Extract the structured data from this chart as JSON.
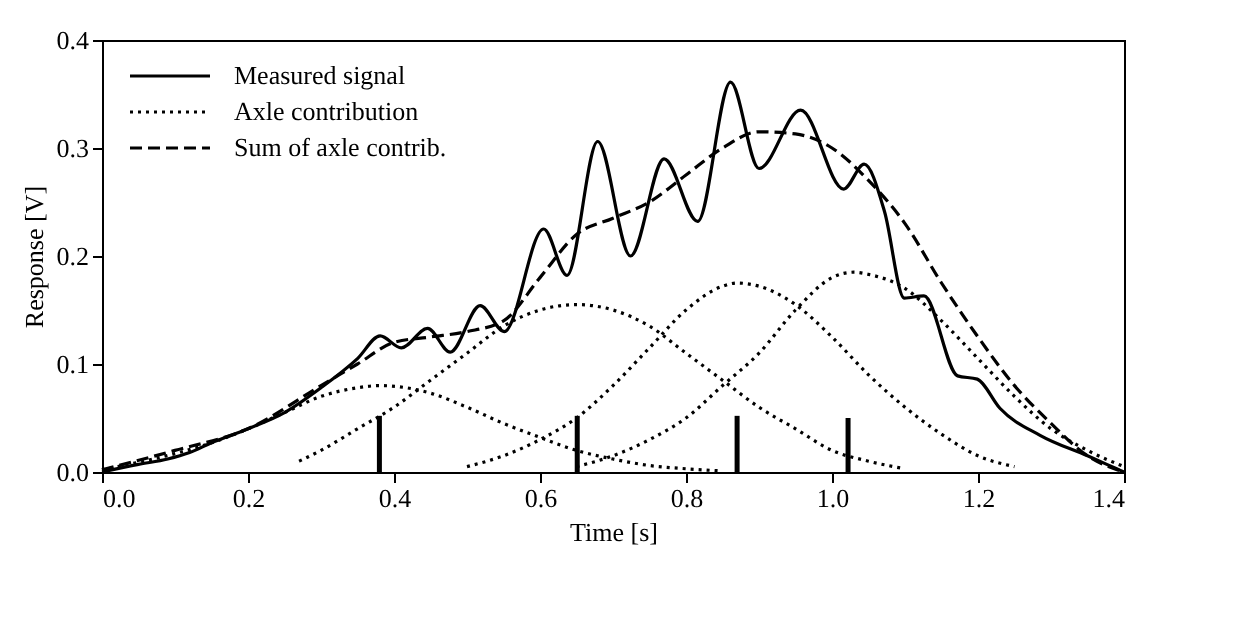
{
  "chart_data": {
    "type": "line",
    "xlabel": "Time [s]",
    "ylabel": "Response [V]",
    "xlim": [
      0,
      1.4
    ],
    "ylim": [
      0,
      0.4
    ],
    "xticks": [
      {
        "value": 0,
        "label": "0.0"
      },
      0.2,
      0.4,
      0.6,
      0.8,
      {
        "value": 1,
        "label": "1.0"
      },
      1.2,
      1.4
    ],
    "yticks": [
      {
        "value": 0,
        "label": "0.0"
      },
      0.1,
      0.2,
      0.3,
      0.4
    ],
    "grid": false,
    "legend": "top left",
    "marker": "none",
    "series": [
      {
        "name": "Measured signal",
        "type": "line",
        "line_style": "solid",
        "color": "#000000",
        "x": [
          0,
          0.05,
          0.09,
          0.12,
          0.15,
          0.2,
          0.25,
          0.3,
          0.35,
          0.381,
          0.41,
          0.446,
          0.477,
          0.518,
          0.551,
          0.605,
          0.637,
          0.679,
          0.724,
          0.77,
          0.816,
          0.861,
          0.9,
          0.957,
          1.016,
          1.044,
          1.072,
          1.099,
          1.126,
          1.172,
          1.199,
          1.23,
          1.285,
          1.35,
          1.39,
          1.4
        ],
        "values": [
          0,
          0.007,
          0.012,
          0.018,
          0.027,
          0.04,
          0.055,
          0.078,
          0.105,
          0.126,
          0.115,
          0.133,
          0.111,
          0.154,
          0.13,
          0.225,
          0.182,
          0.306,
          0.2,
          0.29,
          0.232,
          0.361,
          0.281,
          0.335,
          0.262,
          0.285,
          0.241,
          0.161,
          0.163,
          0.089,
          0.086,
          0.059,
          0.034,
          0.015,
          0.003,
          0
        ]
      },
      {
        "name": "Axle contribution",
        "type": "line",
        "line_style": "dotted",
        "color": "#000000",
        "x": [
          0,
          0.05,
          0.1,
          0.15,
          0.2,
          0.25,
          0.3,
          0.35,
          0.38,
          0.45,
          0.5,
          0.55,
          0.6,
          0.65,
          0.7,
          0.75,
          0.8,
          0.85
        ],
        "values": [
          0.002,
          0.009,
          0.017,
          0.027,
          0.04,
          0.055,
          0.07,
          0.078,
          0.08,
          0.073,
          0.06,
          0.045,
          0.032,
          0.02,
          0.012,
          0.006,
          0.003,
          0.001
        ]
      },
      {
        "line_style": "dotted",
        "color": "#000000",
        "x": [
          0.27,
          0.3,
          0.35,
          0.4,
          0.45,
          0.5,
          0.55,
          0.6,
          0.65,
          0.7,
          0.75,
          0.8,
          0.85,
          0.9,
          0.95,
          1.0,
          1.05,
          1.1
        ],
        "values": [
          0.01,
          0.02,
          0.04,
          0.06,
          0.085,
          0.11,
          0.135,
          0.15,
          0.155,
          0.15,
          0.135,
          0.11,
          0.085,
          0.06,
          0.04,
          0.02,
          0.01,
          0.003
        ]
      },
      {
        "line_style": "dotted",
        "color": "#000000",
        "x": [
          0.5,
          0.55,
          0.6,
          0.65,
          0.7,
          0.75,
          0.8,
          0.85,
          0.87,
          0.9,
          0.95,
          1.0,
          1.05,
          1.1,
          1.15,
          1.2,
          1.25
        ],
        "values": [
          0.005,
          0.015,
          0.03,
          0.05,
          0.08,
          0.115,
          0.15,
          0.172,
          0.175,
          0.172,
          0.155,
          0.125,
          0.09,
          0.06,
          0.035,
          0.015,
          0.005
        ]
      },
      {
        "line_style": "dotted",
        "color": "#000000",
        "x": [
          0.65,
          0.7,
          0.75,
          0.8,
          0.85,
          0.9,
          0.95,
          1.0,
          1.03,
          1.05,
          1.1,
          1.15,
          1.2,
          1.25,
          1.3,
          1.35,
          1.4
        ],
        "values": [
          0.005,
          0.015,
          0.03,
          0.05,
          0.08,
          0.11,
          0.15,
          0.18,
          0.185,
          0.183,
          0.17,
          0.14,
          0.105,
          0.07,
          0.04,
          0.02,
          0.005
        ]
      },
      {
        "name": "Sum of axle contrib.",
        "type": "line",
        "line_style": "dashed",
        "color": "#000000",
        "x": [
          0,
          0.1,
          0.2,
          0.3,
          0.35,
          0.4,
          0.45,
          0.5,
          0.55,
          0.6,
          0.65,
          0.7,
          0.75,
          0.8,
          0.85,
          0.9,
          0.95,
          1.0,
          1.05,
          1.1,
          1.15,
          1.2,
          1.25,
          1.3,
          1.35,
          1.4
        ],
        "values": [
          0.002,
          0.02,
          0.04,
          0.08,
          0.1,
          0.12,
          0.125,
          0.13,
          0.14,
          0.18,
          0.22,
          0.235,
          0.25,
          0.275,
          0.3,
          0.315,
          0.313,
          0.3,
          0.27,
          0.23,
          0.175,
          0.125,
          0.08,
          0.045,
          0.015,
          0
        ]
      },
      {
        "type": "bar",
        "color": "#000000",
        "x": [
          0.38,
          0.651,
          0.87,
          1.022
        ],
        "values": [
          0.052,
          0.052,
          0.052,
          0.05
        ]
      }
    ]
  }
}
